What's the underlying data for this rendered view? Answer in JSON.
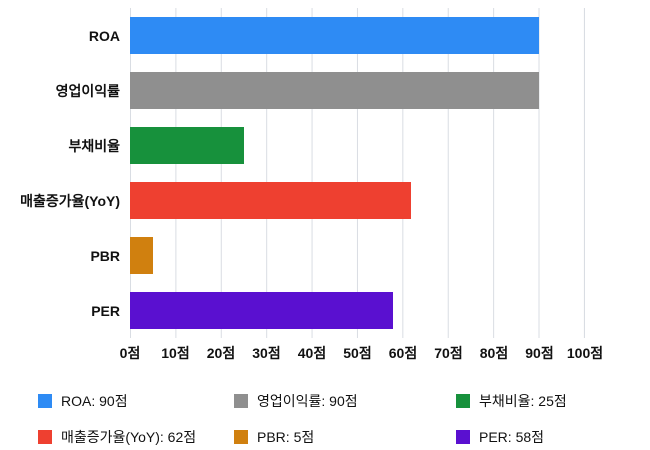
{
  "chart_data": {
    "type": "bar",
    "orientation": "horizontal",
    "title": "",
    "categories": [
      "ROA",
      "영업이익률",
      "부채비율",
      "매출증가율(YoY)",
      "PBR",
      "PER"
    ],
    "values": [
      90,
      90,
      25,
      62,
      5,
      58
    ],
    "colors": [
      "#2e8bf4",
      "#8f8f8f",
      "#17913c",
      "#ee4030",
      "#d0800f",
      "#5a10d0"
    ],
    "xlim": [
      0,
      100
    ],
    "x_ticks": [
      "0점",
      "10점",
      "20점",
      "30점",
      "40점",
      "50점",
      "60점",
      "70점",
      "80점",
      "90점",
      "100점"
    ],
    "grid": true,
    "gridline_color": "#d9dde3",
    "legend_position": "bottom",
    "legend": [
      {
        "label": "ROA: 90점",
        "color": "#2e8bf4"
      },
      {
        "label": "영업이익률: 90점",
        "color": "#8f8f8f"
      },
      {
        "label": "부채비율: 25점",
        "color": "#17913c"
      },
      {
        "label": "매출증가율(YoY): 62점",
        "color": "#ee4030"
      },
      {
        "label": "PBR: 5점",
        "color": "#d0800f"
      },
      {
        "label": "PER: 58점",
        "color": "#5a10d0"
      }
    ]
  }
}
